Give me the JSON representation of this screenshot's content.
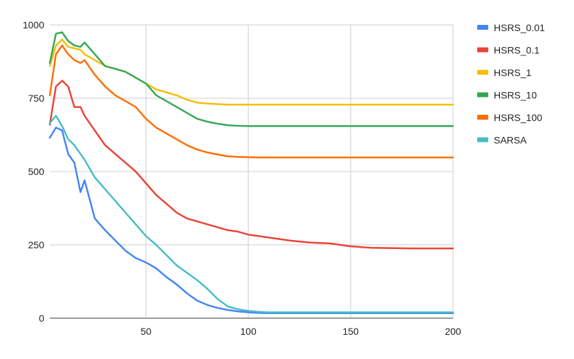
{
  "chart_data": {
    "type": "line",
    "title": "",
    "xlabel": "",
    "ylabel": "",
    "xlim": [
      3,
      200
    ],
    "ylim": [
      0,
      1000
    ],
    "x_ticks": [
      50,
      100,
      150,
      200
    ],
    "y_ticks": [
      0,
      250,
      500,
      750,
      1000
    ],
    "grid": true,
    "legend_position": "right",
    "x": [
      3,
      6,
      9,
      12,
      15,
      18,
      20,
      25,
      30,
      35,
      40,
      45,
      50,
      55,
      60,
      65,
      70,
      75,
      80,
      85,
      90,
      95,
      100,
      105,
      110,
      120,
      130,
      140,
      150,
      160,
      180,
      200
    ],
    "series": [
      {
        "name": "HSRS_0.01",
        "color": "#4285F4",
        "values": [
          615,
          650,
          640,
          560,
          530,
          430,
          470,
          340,
          300,
          265,
          230,
          205,
          190,
          170,
          140,
          115,
          85,
          60,
          45,
          35,
          28,
          23,
          20,
          18,
          17,
          17,
          17,
          17,
          17,
          17,
          17,
          17
        ]
      },
      {
        "name": "HSRS_0.1",
        "color": "#EA4335",
        "values": [
          660,
          790,
          810,
          790,
          720,
          720,
          690,
          640,
          590,
          560,
          530,
          500,
          460,
          420,
          390,
          360,
          340,
          330,
          320,
          310,
          300,
          295,
          285,
          280,
          275,
          265,
          258,
          255,
          245,
          240,
          238,
          238
        ]
      },
      {
        "name": "HSRS_1",
        "color": "#FBBC04",
        "values": [
          860,
          930,
          950,
          925,
          920,
          915,
          900,
          880,
          860,
          850,
          840,
          820,
          800,
          780,
          770,
          760,
          745,
          735,
          732,
          730,
          728,
          728,
          728,
          728,
          728,
          728,
          728,
          728,
          728,
          728,
          728,
          728
        ]
      },
      {
        "name": "HSRS_10",
        "color": "#34A853",
        "values": [
          870,
          970,
          975,
          945,
          930,
          925,
          940,
          900,
          860,
          850,
          840,
          820,
          800,
          760,
          740,
          720,
          700,
          680,
          670,
          663,
          658,
          656,
          655,
          655,
          655,
          655,
          655,
          655,
          655,
          655,
          655,
          655
        ]
      },
      {
        "name": "HSRS_100",
        "color": "#FF6D01",
        "values": [
          760,
          900,
          930,
          900,
          880,
          870,
          880,
          830,
          790,
          760,
          740,
          720,
          680,
          650,
          630,
          610,
          590,
          575,
          565,
          558,
          552,
          550,
          549,
          548,
          548,
          548,
          548,
          548,
          548,
          548,
          548,
          548
        ]
      },
      {
        "name": "SARSA",
        "color": "#46BDC6",
        "values": [
          665,
          690,
          655,
          610,
          590,
          560,
          540,
          480,
          440,
          400,
          360,
          320,
          280,
          250,
          215,
          180,
          155,
          130,
          100,
          65,
          40,
          30,
          25,
          22,
          20,
          20,
          20,
          20,
          20,
          20,
          20,
          20
        ]
      }
    ]
  }
}
